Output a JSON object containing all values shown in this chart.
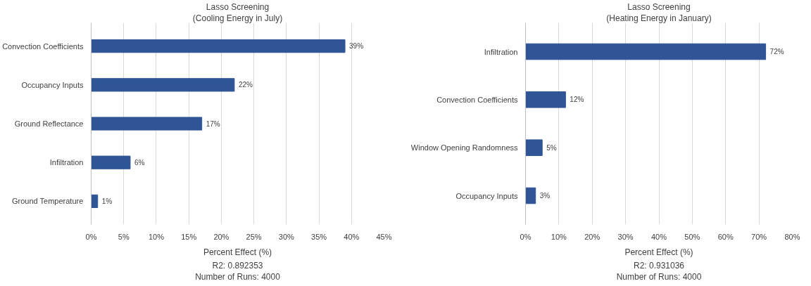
{
  "chart_data": [
    {
      "type": "bar",
      "orientation": "horizontal",
      "title": "Lasso Screening",
      "subtitle": "(Cooling Energy in July)",
      "xlabel": "Percent Effect (%)",
      "annotations": [
        "R2: 0.892353",
        "Number of Runs: 4000"
      ],
      "categories": [
        "Convection Coefficients",
        "Occupancy Inputs",
        "Ground Reflectance",
        "Infiltration",
        "Ground Temperature"
      ],
      "values": [
        39,
        22,
        17,
        6,
        1
      ],
      "value_labels": [
        "39%",
        "22%",
        "17%",
        "6%",
        "1%"
      ],
      "color": "#2f5597",
      "xlim": [
        0,
        45
      ],
      "xticks": [
        {
          "value": 0,
          "label": "0%"
        },
        {
          "value": 5,
          "label": "5%"
        },
        {
          "value": 10,
          "label": "10%"
        },
        {
          "value": 15,
          "label": "15%"
        },
        {
          "value": 20,
          "label": "20%"
        },
        {
          "value": 25,
          "label": "25%"
        },
        {
          "value": 30,
          "label": "30%"
        },
        {
          "value": 35,
          "label": "35%"
        },
        {
          "value": 40,
          "label": "40%"
        },
        {
          "value": 45,
          "label": "45%"
        }
      ],
      "grid": "x"
    },
    {
      "type": "bar",
      "orientation": "horizontal",
      "title": "Lasso Screening",
      "subtitle": "(Heating Energy in January)",
      "xlabel": "Percent Effect (%)",
      "annotations": [
        "R2: 0.931036",
        "Number of Runs: 4000"
      ],
      "categories": [
        "Infiltration",
        "Convection Coefficients",
        "Window Opening Randomness",
        "Occupancy Inputs"
      ],
      "values": [
        72,
        12,
        5,
        3
      ],
      "value_labels": [
        "72%",
        "12%",
        "5%",
        "3%"
      ],
      "color": "#2f5597",
      "xlim": [
        0,
        80
      ],
      "xticks": [
        {
          "value": 0,
          "label": "0%"
        },
        {
          "value": 10,
          "label": "10%"
        },
        {
          "value": 20,
          "label": "20%"
        },
        {
          "value": 30,
          "label": "30%"
        },
        {
          "value": 40,
          "label": "40%"
        },
        {
          "value": 50,
          "label": "50%"
        },
        {
          "value": 60,
          "label": "60%"
        },
        {
          "value": 70,
          "label": "70%"
        },
        {
          "value": 80,
          "label": "80%"
        }
      ],
      "grid": "x"
    }
  ]
}
